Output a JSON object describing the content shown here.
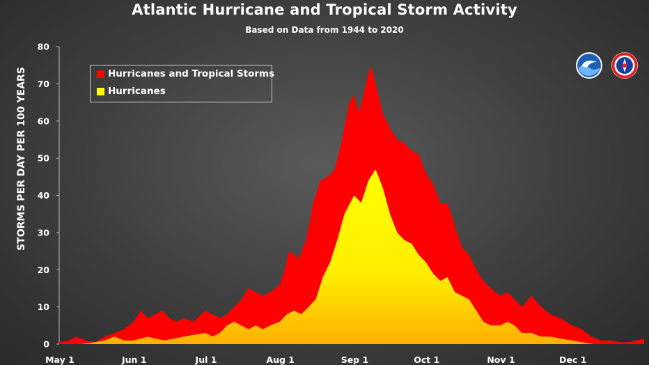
{
  "title": "Atlantic Hurricane and Tropical Storm Activity",
  "subtitle": "Based on Data from 1944 to 2020",
  "logos": {
    "noaa": "NOAA",
    "nws": "National Weather Service"
  },
  "colors": {
    "storms": "#ff0000",
    "hurricanes": "#ffff00",
    "background": "#444444"
  },
  "chart_data": {
    "type": "area",
    "title": "Atlantic Hurricane and Tropical Storm Activity",
    "subtitle": "Based on Data from 1944 to 2020",
    "xlabel": "",
    "ylabel": "STORMS PER DAY PER 100 YEARS",
    "ylim": [
      0,
      80
    ],
    "yticks": [
      0,
      10,
      20,
      30,
      40,
      50,
      60,
      70,
      80
    ],
    "xticks": [
      "May 1",
      "Jun 1",
      "Jul 1",
      "Aug 1",
      "Sep 1",
      "Oct 1",
      "Nov 1",
      "Dec 1"
    ],
    "grid": false,
    "legend_position": "top-left",
    "series": [
      {
        "name": "Hurricanes and Tropical Storms",
        "color": "#ff0000",
        "points": [
          [
            "May 1",
            0.5
          ],
          [
            "May 5",
            1
          ],
          [
            "May 8",
            2
          ],
          [
            "May 12",
            1
          ],
          [
            "May 16",
            0.5
          ],
          [
            "May 20",
            2
          ],
          [
            "May 24",
            3
          ],
          [
            "May 28",
            4
          ],
          [
            "Jun 1",
            6
          ],
          [
            "Jun 4",
            9
          ],
          [
            "Jun 7",
            7
          ],
          [
            "Jun 10",
            8
          ],
          [
            "Jun 13",
            9
          ],
          [
            "Jun 16",
            7
          ],
          [
            "Jun 19",
            6
          ],
          [
            "Jun 22",
            7
          ],
          [
            "Jun 26",
            6
          ],
          [
            "Jul 1",
            9
          ],
          [
            "Jul 4",
            8
          ],
          [
            "Jul 7",
            7
          ],
          [
            "Jul 10",
            8
          ],
          [
            "Jul 13",
            10
          ],
          [
            "Jul 16",
            12
          ],
          [
            "Jul 19",
            15
          ],
          [
            "Jul 22",
            14
          ],
          [
            "Jul 25",
            13
          ],
          [
            "Jul 28",
            14
          ],
          [
            "Aug 1",
            16
          ],
          [
            "Aug 3",
            20
          ],
          [
            "Aug 5",
            25
          ],
          [
            "Aug 7",
            24
          ],
          [
            "Aug 9",
            23
          ],
          [
            "Aug 12",
            28
          ],
          [
            "Aug 15",
            38
          ],
          [
            "Aug 18",
            44
          ],
          [
            "Aug 21",
            45
          ],
          [
            "Aug 24",
            47
          ],
          [
            "Aug 27",
            55
          ],
          [
            "Aug 30",
            65
          ],
          [
            "Sep 1",
            67
          ],
          [
            "Sep 3",
            62
          ],
          [
            "Sep 6",
            70
          ],
          [
            "Sep 8",
            75
          ],
          [
            "Sep 10",
            70
          ],
          [
            "Sep 13",
            62
          ],
          [
            "Sep 16",
            58
          ],
          [
            "Sep 19",
            55
          ],
          [
            "Sep 22",
            54
          ],
          [
            "Sep 25",
            52
          ],
          [
            "Sep 28",
            51
          ],
          [
            "Oct 1",
            46
          ],
          [
            "Oct 4",
            43
          ],
          [
            "Oct 7",
            38
          ],
          [
            "Oct 10",
            38
          ],
          [
            "Oct 13",
            32
          ],
          [
            "Oct 16",
            26
          ],
          [
            "Oct 19",
            24
          ],
          [
            "Oct 22",
            20
          ],
          [
            "Oct 25",
            17
          ],
          [
            "Oct 28",
            15
          ],
          [
            "Nov 1",
            13
          ],
          [
            "Nov 4",
            14
          ],
          [
            "Nov 7",
            12
          ],
          [
            "Nov 10",
            10
          ],
          [
            "Nov 14",
            13
          ],
          [
            "Nov 18",
            10
          ],
          [
            "Nov 22",
            8
          ],
          [
            "Nov 26",
            7
          ],
          [
            "Dec 1",
            5
          ],
          [
            "Dec 5",
            4
          ],
          [
            "Dec 9",
            2
          ],
          [
            "Dec 13",
            1
          ],
          [
            "Dec 17",
            1
          ],
          [
            "Dec 21",
            0.5
          ],
          [
            "Dec 25",
            0.5
          ],
          [
            "Dec 31",
            1.5
          ]
        ]
      },
      {
        "name": "Hurricanes",
        "color": "#ffff00",
        "points": [
          [
            "May 1",
            0
          ],
          [
            "May 10",
            0
          ],
          [
            "May 16",
            0.5
          ],
          [
            "May 20",
            1
          ],
          [
            "May 24",
            2
          ],
          [
            "May 28",
            1
          ],
          [
            "Jun 1",
            1
          ],
          [
            "Jun 4",
            1.5
          ],
          [
            "Jun 7",
            2
          ],
          [
            "Jun 10",
            1.5
          ],
          [
            "Jun 14",
            1
          ],
          [
            "Jun 18",
            1.5
          ],
          [
            "Jun 22",
            2
          ],
          [
            "Jun 26",
            2.5
          ],
          [
            "Jul 1",
            3
          ],
          [
            "Jul 4",
            2
          ],
          [
            "Jul 7",
            3
          ],
          [
            "Jul 10",
            5
          ],
          [
            "Jul 13",
            6
          ],
          [
            "Jul 16",
            5
          ],
          [
            "Jul 19",
            4
          ],
          [
            "Jul 22",
            5
          ],
          [
            "Jul 25",
            4
          ],
          [
            "Jul 28",
            5
          ],
          [
            "Aug 1",
            6
          ],
          [
            "Aug 4",
            8
          ],
          [
            "Aug 7",
            9
          ],
          [
            "Aug 10",
            8
          ],
          [
            "Aug 13",
            10
          ],
          [
            "Aug 16",
            12
          ],
          [
            "Aug 19",
            18
          ],
          [
            "Aug 22",
            22
          ],
          [
            "Aug 25",
            28
          ],
          [
            "Aug 28",
            35
          ],
          [
            "Sep 1",
            40
          ],
          [
            "Sep 4",
            38
          ],
          [
            "Sep 7",
            44
          ],
          [
            "Sep 10",
            47
          ],
          [
            "Sep 13",
            42
          ],
          [
            "Sep 16",
            35
          ],
          [
            "Sep 19",
            30
          ],
          [
            "Sep 22",
            28
          ],
          [
            "Sep 25",
            27
          ],
          [
            "Sep 28",
            24
          ],
          [
            "Oct 1",
            22
          ],
          [
            "Oct 4",
            19
          ],
          [
            "Oct 7",
            17
          ],
          [
            "Oct 10",
            18
          ],
          [
            "Oct 13",
            14
          ],
          [
            "Oct 16",
            13
          ],
          [
            "Oct 19",
            12
          ],
          [
            "Oct 22",
            9
          ],
          [
            "Oct 25",
            6
          ],
          [
            "Oct 28",
            5
          ],
          [
            "Nov 1",
            5
          ],
          [
            "Nov 4",
            6
          ],
          [
            "Nov 7",
            5
          ],
          [
            "Nov 10",
            3
          ],
          [
            "Nov 14",
            3
          ],
          [
            "Nov 18",
            2
          ],
          [
            "Nov 22",
            2
          ],
          [
            "Nov 26",
            1.5
          ],
          [
            "Dec 1",
            1
          ],
          [
            "Dec 5",
            0.5
          ],
          [
            "Dec 10",
            0
          ],
          [
            "Dec 15",
            0
          ],
          [
            "Dec 21",
            0
          ],
          [
            "Dec 31",
            0
          ]
        ]
      }
    ]
  }
}
